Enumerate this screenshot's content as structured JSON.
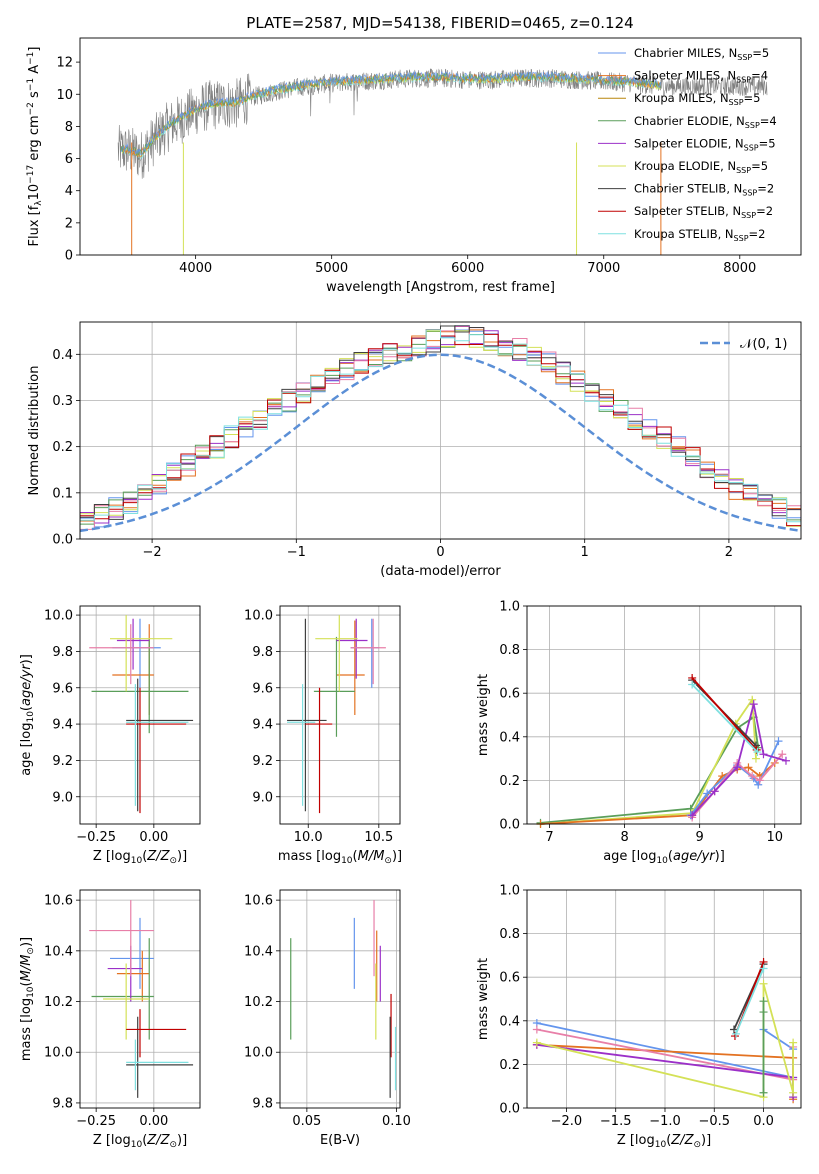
{
  "figure": {
    "title": "PLATE=2587, MJD=54138, FIBERID=0465, z=0.124"
  },
  "colors": {
    "chabrier_miles": "#6495ed",
    "salpeter_miles": "#e37222",
    "kroupa_miles": "#b8860b",
    "chabrier_elodie": "#5a9e5a",
    "salpeter_elodie": "#9b30c8",
    "kroupa_elodie": "#d4e157",
    "chabrier_stelib": "#404040",
    "salpeter_stelib": "#c00000",
    "kroupa_stelib": "#7fe0e0",
    "data": "#808080",
    "pink": "#e87fa8",
    "gaussian": "#5b8fd6"
  },
  "chart_data": [
    {
      "id": "spectrum",
      "type": "line",
      "xlabel": "wavelength [Angstrom, rest frame]",
      "ylabel": "Flux [f_λ 10^-17 erg cm^-2 s^-1 A^-1]",
      "xlim": [
        3150,
        8450
      ],
      "ylim": [
        0,
        13.5
      ],
      "xticks": [
        "4000",
        "5000",
        "6000",
        "7000",
        "8000"
      ],
      "yticks": [
        "0",
        "2",
        "4",
        "6",
        "8",
        "10",
        "12"
      ],
      "legend_position": "upper-right",
      "legend": [
        {
          "label": "Chabrier MILES, N",
          "sub": "SSP",
          "tail": "=5"
        },
        {
          "label": "Salpeter MILES, N",
          "sub": "SSP",
          "tail": "=4"
        },
        {
          "label": "Kroupa MILES, N",
          "sub": "SSP",
          "tail": "=5"
        },
        {
          "label": "Chabrier ELODIE, N",
          "sub": "SSP",
          "tail": "=4"
        },
        {
          "label": "Salpeter ELODIE, N",
          "sub": "SSP",
          "tail": "=5"
        },
        {
          "label": "Kroupa ELODIE, N",
          "sub": "SSP",
          "tail": "=5"
        },
        {
          "label": "Chabrier STELIB, N",
          "sub": "SSP",
          "tail": "=2"
        },
        {
          "label": "Salpeter STELIB, N",
          "sub": "SSP",
          "tail": "=2"
        },
        {
          "label": "Kroupa STELIB, N",
          "sub": "SSP",
          "tail": "=2"
        }
      ],
      "continuum": {
        "x": [
          3500,
          3600,
          3700,
          3800,
          3900,
          4000,
          4100,
          4200,
          4300,
          4400,
          4500,
          4600,
          4800,
          5000,
          5200,
          5400,
          5600,
          5800,
          6000,
          6200,
          6400,
          6600,
          6800,
          7000,
          7200,
          7400
        ],
        "y": [
          6.5,
          6.2,
          7.2,
          8.0,
          8.5,
          9.0,
          9.3,
          9.4,
          9.4,
          9.8,
          10.0,
          10.2,
          10.5,
          10.7,
          10.8,
          10.9,
          11.0,
          11.0,
          10.9,
          10.9,
          11.0,
          11.0,
          10.9,
          10.8,
          10.7,
          10.5
        ]
      },
      "data_range": [
        3400,
        8200
      ]
    },
    {
      "id": "residuals",
      "type": "line",
      "xlabel": "(data-model)/error",
      "ylabel": "Normed distribution",
      "xlim": [
        -2.5,
        2.5
      ],
      "ylim": [
        0,
        0.47
      ],
      "xticks": [
        "−2",
        "−1",
        "0",
        "1",
        "2"
      ],
      "yticks": [
        "0.0",
        "0.1",
        "0.2",
        "0.3",
        "0.4"
      ],
      "legend_position": "upper-right",
      "legend_label": "𝒩(0, 1)",
      "bin_width": 0.1,
      "hist_ref": [
        0.02,
        0.025,
        0.03,
        0.04,
        0.05,
        0.065,
        0.08,
        0.1,
        0.12,
        0.14,
        0.16,
        0.18,
        0.2,
        0.22,
        0.24,
        0.26,
        0.28,
        0.3,
        0.32,
        0.34,
        0.36,
        0.37,
        0.38,
        0.39,
        0.4,
        0.41,
        0.42,
        0.43,
        0.44,
        0.44,
        0.44,
        0.43,
        0.42,
        0.41,
        0.4,
        0.38,
        0.36,
        0.34,
        0.32,
        0.3,
        0.28,
        0.26,
        0.24,
        0.22,
        0.2,
        0.18,
        0.15,
        0.13,
        0.11,
        0.095,
        0.08,
        0.065,
        0.05,
        0.04,
        0.035,
        0.03
      ]
    },
    {
      "id": "age-vs-Z",
      "type": "scatter",
      "xlabel": "Z [log10(Z/Z⊙)]",
      "ylabel": "age [log10(age/yr)]",
      "xlim": [
        -0.32,
        0.2
      ],
      "ylim": [
        8.85,
        10.05
      ],
      "xticks": [
        "−0.25",
        "0.00"
      ],
      "yticks": [
        "9.0",
        "9.2",
        "9.4",
        "9.6",
        "9.8",
        "10.0"
      ],
      "points": [
        {
          "c": "chabrier_miles",
          "x": -0.06,
          "y": 9.82,
          "ex": [
            -0.18,
            0.03
          ],
          "ey": [
            9.6,
            9.98
          ]
        },
        {
          "c": "salpeter_miles",
          "x": -0.02,
          "y": 9.67,
          "ex": [
            -0.18,
            0.0
          ],
          "ey": [
            9.45,
            9.95
          ]
        },
        {
          "c": "chabrier_elodie",
          "x": -0.02,
          "y": 9.58,
          "ex": [
            -0.27,
            0.15
          ],
          "ey": [
            9.35,
            9.87
          ]
        },
        {
          "c": "salpeter_elodie",
          "x": -0.09,
          "y": 9.86,
          "ex": [
            -0.16,
            -0.02
          ],
          "ey": [
            9.7,
            9.98
          ]
        },
        {
          "c": "kroupa_elodie",
          "x": -0.12,
          "y": 9.87,
          "ex": [
            -0.19,
            0.08
          ],
          "ey": [
            9.58,
            10.0
          ]
        },
        {
          "c": "pink",
          "x": -0.1,
          "y": 9.82,
          "ex": [
            -0.28,
            0.0
          ],
          "ey": [
            9.62,
            9.95
          ]
        },
        {
          "c": "chabrier_stelib",
          "x": -0.07,
          "y": 9.42,
          "ex": [
            -0.12,
            0.17
          ],
          "ey": [
            8.92,
            9.65
          ]
        },
        {
          "c": "salpeter_stelib",
          "x": -0.06,
          "y": 9.4,
          "ex": [
            -0.12,
            0.14
          ],
          "ey": [
            8.91,
            9.6
          ]
        },
        {
          "c": "kroupa_stelib",
          "x": -0.08,
          "y": 9.41,
          "ex": [
            -0.12,
            0.15
          ],
          "ey": [
            8.95,
            9.62
          ]
        }
      ]
    },
    {
      "id": "age-vs-mass",
      "type": "scatter",
      "xlabel": "mass [log10(M/M⊙)]",
      "ylabel": "",
      "xlim": [
        9.8,
        10.65
      ],
      "ylim": [
        8.85,
        10.05
      ],
      "xticks": [
        "10.0",
        "10.5"
      ],
      "yticks": [
        "9.0",
        "9.2",
        "9.4",
        "9.6",
        "9.8",
        "10.0"
      ],
      "points": [
        {
          "c": "chabrier_miles",
          "x": 10.45,
          "y": 9.82,
          "ex": [
            10.3,
            10.5
          ],
          "ey": [
            9.6,
            9.98
          ]
        },
        {
          "c": "salpeter_miles",
          "x": 10.33,
          "y": 9.67,
          "ex": [
            10.2,
            10.4
          ],
          "ey": [
            9.45,
            9.97
          ]
        },
        {
          "c": "chabrier_elodie",
          "x": 10.2,
          "y": 9.58,
          "ex": [
            10.04,
            10.33
          ],
          "ey": [
            9.33,
            9.88
          ]
        },
        {
          "c": "salpeter_elodie",
          "x": 10.34,
          "y": 9.86,
          "ex": [
            10.2,
            10.42
          ],
          "ey": [
            9.65,
            9.98
          ]
        },
        {
          "c": "kroupa_elodie",
          "x": 10.22,
          "y": 9.87,
          "ex": [
            10.05,
            10.35
          ],
          "ey": [
            9.58,
            10.0
          ]
        },
        {
          "c": "pink",
          "x": 10.46,
          "y": 9.82,
          "ex": [
            10.3,
            10.55
          ],
          "ey": [
            9.62,
            9.98
          ]
        },
        {
          "c": "chabrier_stelib",
          "x": 9.98,
          "y": 9.42,
          "ex": [
            9.85,
            10.13
          ],
          "ey": [
            8.92,
            9.98
          ]
        },
        {
          "c": "salpeter_stelib",
          "x": 10.08,
          "y": 9.4,
          "ex": [
            9.98,
            10.17
          ],
          "ey": [
            8.91,
            9.6
          ]
        },
        {
          "c": "kroupa_stelib",
          "x": 9.96,
          "y": 9.41,
          "ex": [
            9.85,
            10.05
          ],
          "ey": [
            8.95,
            9.62
          ]
        }
      ]
    },
    {
      "id": "weight-vs-age",
      "type": "line",
      "xlabel": "age [log10(age/yr)]",
      "ylabel": "mass weight",
      "xlim": [
        6.7,
        10.35
      ],
      "ylim": [
        0,
        1.0
      ],
      "xticks": [
        "7",
        "8",
        "9",
        "10"
      ],
      "yticks": [
        "0.0",
        "0.2",
        "0.4",
        "0.6",
        "0.8",
        "1.0"
      ],
      "series": [
        {
          "c": "chabrier_elodie",
          "x": [
            6.88,
            8.88,
            9.5,
            9.72,
            9.78
          ],
          "y": [
            0.005,
            0.07,
            0.44,
            0.49,
            0.35
          ]
        },
        {
          "c": "kroupa_elodie",
          "x": [
            6.88,
            8.9,
            9.48,
            9.7,
            9.75
          ],
          "y": [
            0.0,
            0.05,
            0.46,
            0.57,
            0.3
          ]
        },
        {
          "c": "salpeter_miles",
          "x": [
            6.88,
            8.9,
            9.3,
            9.5,
            9.65,
            9.8,
            10.0
          ],
          "y": [
            0.0,
            0.04,
            0.22,
            0.25,
            0.26,
            0.22,
            0.28
          ]
        },
        {
          "c": "chabrier_miles",
          "x": [
            8.88,
            9.1,
            9.5,
            9.72,
            9.78,
            10.05
          ],
          "y": [
            0.04,
            0.14,
            0.27,
            0.21,
            0.18,
            0.38
          ]
        },
        {
          "c": "pink",
          "x": [
            8.9,
            9.2,
            9.5,
            9.7,
            9.8,
            10.1
          ],
          "y": [
            0.03,
            0.15,
            0.28,
            0.22,
            0.2,
            0.32
          ]
        },
        {
          "c": "salpeter_elodie",
          "x": [
            8.9,
            9.2,
            9.5,
            9.72,
            9.85,
            10.15
          ],
          "y": [
            0.04,
            0.15,
            0.26,
            0.55,
            0.32,
            0.29
          ]
        },
        {
          "c": "chabrier_stelib",
          "x": [
            8.9,
            9.75
          ],
          "y": [
            0.66,
            0.36
          ]
        },
        {
          "c": "salpeter_stelib",
          "x": [
            8.9,
            9.76
          ],
          "y": [
            0.67,
            0.34
          ]
        },
        {
          "c": "kroupa_stelib",
          "x": [
            8.9,
            9.77
          ],
          "y": [
            0.64,
            0.33
          ]
        }
      ]
    },
    {
      "id": "mass-vs-Z",
      "type": "scatter",
      "xlabel": "Z [log10(Z/Z⊙)]",
      "ylabel": "mass [log10(M/M⊙)]",
      "xlim": [
        -0.32,
        0.2
      ],
      "ylim": [
        9.78,
        10.64
      ],
      "xticks": [
        "−0.25",
        "0.00"
      ],
      "yticks": [
        "9.8",
        "10.0",
        "10.2",
        "10.4",
        "10.6"
      ],
      "points": [
        {
          "c": "chabrier_miles",
          "x": -0.06,
          "y": 10.37,
          "ex": [
            -0.19,
            0.0
          ],
          "ey": [
            10.25,
            10.53
          ]
        },
        {
          "c": "salpeter_miles",
          "x": -0.05,
          "y": 10.31,
          "ex": [
            -0.16,
            -0.02
          ],
          "ey": [
            10.2,
            10.4
          ]
        },
        {
          "c": "chabrier_elodie",
          "x": -0.02,
          "y": 10.22,
          "ex": [
            -0.27,
            0.0
          ],
          "ey": [
            10.05,
            10.45
          ]
        },
        {
          "c": "salpeter_elodie",
          "x": -0.1,
          "y": 10.33,
          "ex": [
            -0.2,
            -0.05
          ],
          "ey": [
            10.2,
            10.42
          ]
        },
        {
          "c": "kroupa_elodie",
          "x": -0.12,
          "y": 10.21,
          "ex": [
            -0.22,
            -0.02
          ],
          "ey": [
            10.05,
            10.35
          ]
        },
        {
          "c": "pink",
          "x": -0.1,
          "y": 10.48,
          "ex": [
            -0.28,
            0.0
          ],
          "ey": [
            10.3,
            10.6
          ]
        },
        {
          "c": "chabrier_stelib",
          "x": -0.07,
          "y": 9.95,
          "ex": [
            -0.12,
            0.17
          ],
          "ey": [
            9.82,
            10.14
          ]
        },
        {
          "c": "salpeter_stelib",
          "x": -0.06,
          "y": 10.09,
          "ex": [
            -0.12,
            0.14
          ],
          "ey": [
            9.98,
            10.17
          ]
        },
        {
          "c": "kroupa_stelib",
          "x": -0.08,
          "y": 9.96,
          "ex": [
            -0.12,
            0.15
          ],
          "ey": [
            9.85,
            10.05
          ]
        }
      ]
    },
    {
      "id": "mass-vs-ebv",
      "type": "scatter",
      "xlabel": "E(B-V)",
      "ylabel": "",
      "xlim": [
        0.035,
        0.102
      ],
      "ylim": [
        9.78,
        10.64
      ],
      "xticks": [
        "0.05",
        "0.10"
      ],
      "yticks": [
        "9.8",
        "10.0",
        "10.2",
        "10.4",
        "10.6"
      ],
      "points": [
        {
          "c": "chabrier_elodie",
          "ey": [
            10.05,
            10.45
          ],
          "x": 0.041
        },
        {
          "c": "chabrier_miles",
          "ey": [
            10.25,
            10.53
          ],
          "x": 0.0765
        },
        {
          "c": "pink",
          "ey": [
            10.3,
            10.6
          ],
          "x": 0.0875
        },
        {
          "c": "salpeter_miles",
          "ey": [
            10.2,
            10.48
          ],
          "x": 0.089
        },
        {
          "c": "kroupa_elodie",
          "ey": [
            10.05,
            10.35
          ],
          "x": 0.0885
        },
        {
          "c": "salpeter_elodie",
          "ey": [
            10.2,
            10.42
          ],
          "x": 0.091
        },
        {
          "c": "salpeter_stelib",
          "ey": [
            9.98,
            10.23
          ],
          "x": 0.097
        },
        {
          "c": "chabrier_stelib",
          "ey": [
            9.82,
            10.14
          ],
          "x": 0.0965
        },
        {
          "c": "kroupa_stelib",
          "ey": [
            9.85,
            10.1
          ],
          "x": 0.0995
        }
      ]
    },
    {
      "id": "weight-vs-Z",
      "type": "line",
      "xlabel": "Z [log10(Z/Z⊙)]",
      "ylabel": "mass weight",
      "xlim": [
        -2.4,
        0.38
      ],
      "ylim": [
        0,
        1.0
      ],
      "xticks": [
        "−2.0",
        "−1.5",
        "−1.0",
        "−0.5",
        "0.0"
      ],
      "yticks": [
        "0.0",
        "0.2",
        "0.4",
        "0.6",
        "0.8",
        "1.0"
      ],
      "series": [
        {
          "c": "chabrier_miles",
          "x": [
            -2.3,
            0.3,
            0.3,
            0.0
          ],
          "y": [
            0.39,
            0.14,
            0.27,
            0.36
          ]
        },
        {
          "c": "salpeter_miles",
          "x": [
            -2.3,
            0.3,
            0.3
          ],
          "y": [
            0.29,
            0.23,
            0.04
          ]
        },
        {
          "c": "pink",
          "x": [
            -2.3,
            0.3,
            0.3
          ],
          "y": [
            0.36,
            0.13,
            0.28
          ]
        },
        {
          "c": "salpeter_elodie",
          "x": [
            -2.3,
            0.3,
            0.3
          ],
          "y": [
            0.29,
            0.14,
            0.05
          ]
        },
        {
          "c": "kroupa_elodie",
          "x": [
            -2.3,
            0.0,
            0.0,
            0.3,
            0.3
          ],
          "y": [
            0.3,
            0.05,
            0.57,
            0.07,
            0.3
          ]
        },
        {
          "c": "chabrier_elodie",
          "x": [
            0.0,
            0.0,
            0.0
          ],
          "y": [
            0.07,
            0.49,
            0.44
          ]
        },
        {
          "c": "chabrier_stelib",
          "x": [
            -0.3,
            0.0
          ],
          "y": [
            0.36,
            0.66
          ]
        },
        {
          "c": "salpeter_stelib",
          "x": [
            -0.29,
            0.0
          ],
          "y": [
            0.33,
            0.67
          ]
        },
        {
          "c": "kroupa_stelib",
          "x": [
            -0.28,
            0.0
          ],
          "y": [
            0.34,
            0.64
          ]
        }
      ]
    }
  ]
}
